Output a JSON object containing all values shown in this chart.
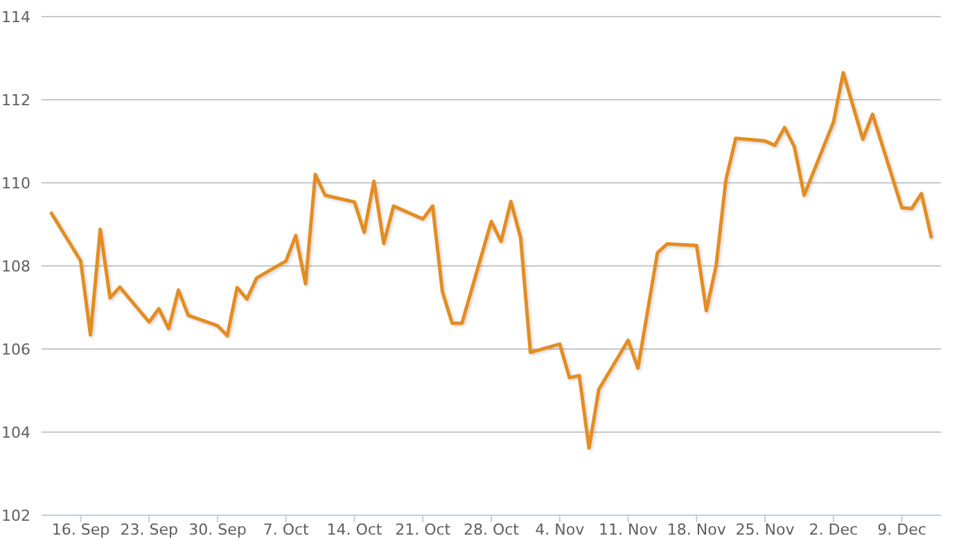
{
  "chart_data": {
    "type": "line",
    "color": "#e38d24",
    "line_style": "solid",
    "grid": "y",
    "x": [
      "--09-13",
      "--09-16",
      "--09-17",
      "--09-18",
      "--09-19",
      "--09-20",
      "--09-23",
      "--09-24",
      "--09-25",
      "--09-26",
      "--09-27",
      "--09-30",
      "--10-01",
      "--10-02",
      "--10-03",
      "--10-04",
      "--10-07",
      "--10-08",
      "--10-09",
      "--10-10",
      "--10-11",
      "--10-14",
      "--10-15",
      "--10-16",
      "--10-17",
      "--10-18",
      "--10-21",
      "--10-22",
      "--10-23",
      "--10-24",
      "--10-25",
      "--10-28",
      "--10-29",
      "--10-30",
      "--10-31",
      "--11-01",
      "--11-04",
      "--11-05",
      "--11-06",
      "--11-07",
      "--11-08",
      "--11-11",
      "--11-12",
      "--11-14",
      "--11-15",
      "--11-18",
      "--11-19",
      "--11-20",
      "--11-21",
      "--11-22",
      "--11-25",
      "--11-26",
      "--11-27",
      "--11-28",
      "--11-29",
      "--12-02",
      "--12-03",
      "--12-05",
      "--12-06",
      "--12-09",
      "--12-10",
      "--12-11",
      "--12-12"
    ],
    "values": [
      109.27,
      108.12,
      106.34,
      108.88,
      107.23,
      107.49,
      106.65,
      106.97,
      106.49,
      107.42,
      106.81,
      106.56,
      106.32,
      107.48,
      107.2,
      107.71,
      108.12,
      108.73,
      107.57,
      110.2,
      109.7,
      109.54,
      108.81,
      110.04,
      108.54,
      109.44,
      109.13,
      109.44,
      107.38,
      106.62,
      106.62,
      109.07,
      108.59,
      109.55,
      108.68,
      105.92,
      106.12,
      105.31,
      105.36,
      103.62,
      105.03,
      106.21,
      105.54,
      108.32,
      108.53,
      108.49,
      106.92,
      108.01,
      110.07,
      111.07,
      111.01,
      110.9,
      111.33,
      110.87,
      109.7,
      111.46,
      112.65,
      111.05,
      111.65,
      109.4,
      109.38,
      109.74,
      108.7
    ],
    "xlim": [
      "--09-12",
      "--12-13"
    ],
    "xticks": [
      {
        "value": "--09-16",
        "label": "16. Sep"
      },
      {
        "value": "--09-23",
        "label": "23. Sep"
      },
      {
        "value": "--09-30",
        "label": "30. Sep"
      },
      {
        "value": "--10-07",
        "label": "7. Oct"
      },
      {
        "value": "--10-14",
        "label": "14. Oct"
      },
      {
        "value": "--10-21",
        "label": "21. Oct"
      },
      {
        "value": "--10-28",
        "label": "28. Oct"
      },
      {
        "value": "--11-04",
        "label": "4. Nov"
      },
      {
        "value": "--11-11",
        "label": "11. Nov"
      },
      {
        "value": "--11-18",
        "label": "18. Nov"
      },
      {
        "value": "--11-25",
        "label": "25. Nov"
      },
      {
        "value": "--12-02",
        "label": "2. Dec"
      },
      {
        "value": "--12-09",
        "label": "9. Dec"
      }
    ],
    "ylim": [
      102,
      114
    ],
    "yticks": [
      102,
      104,
      106,
      108,
      110,
      112,
      114
    ]
  }
}
